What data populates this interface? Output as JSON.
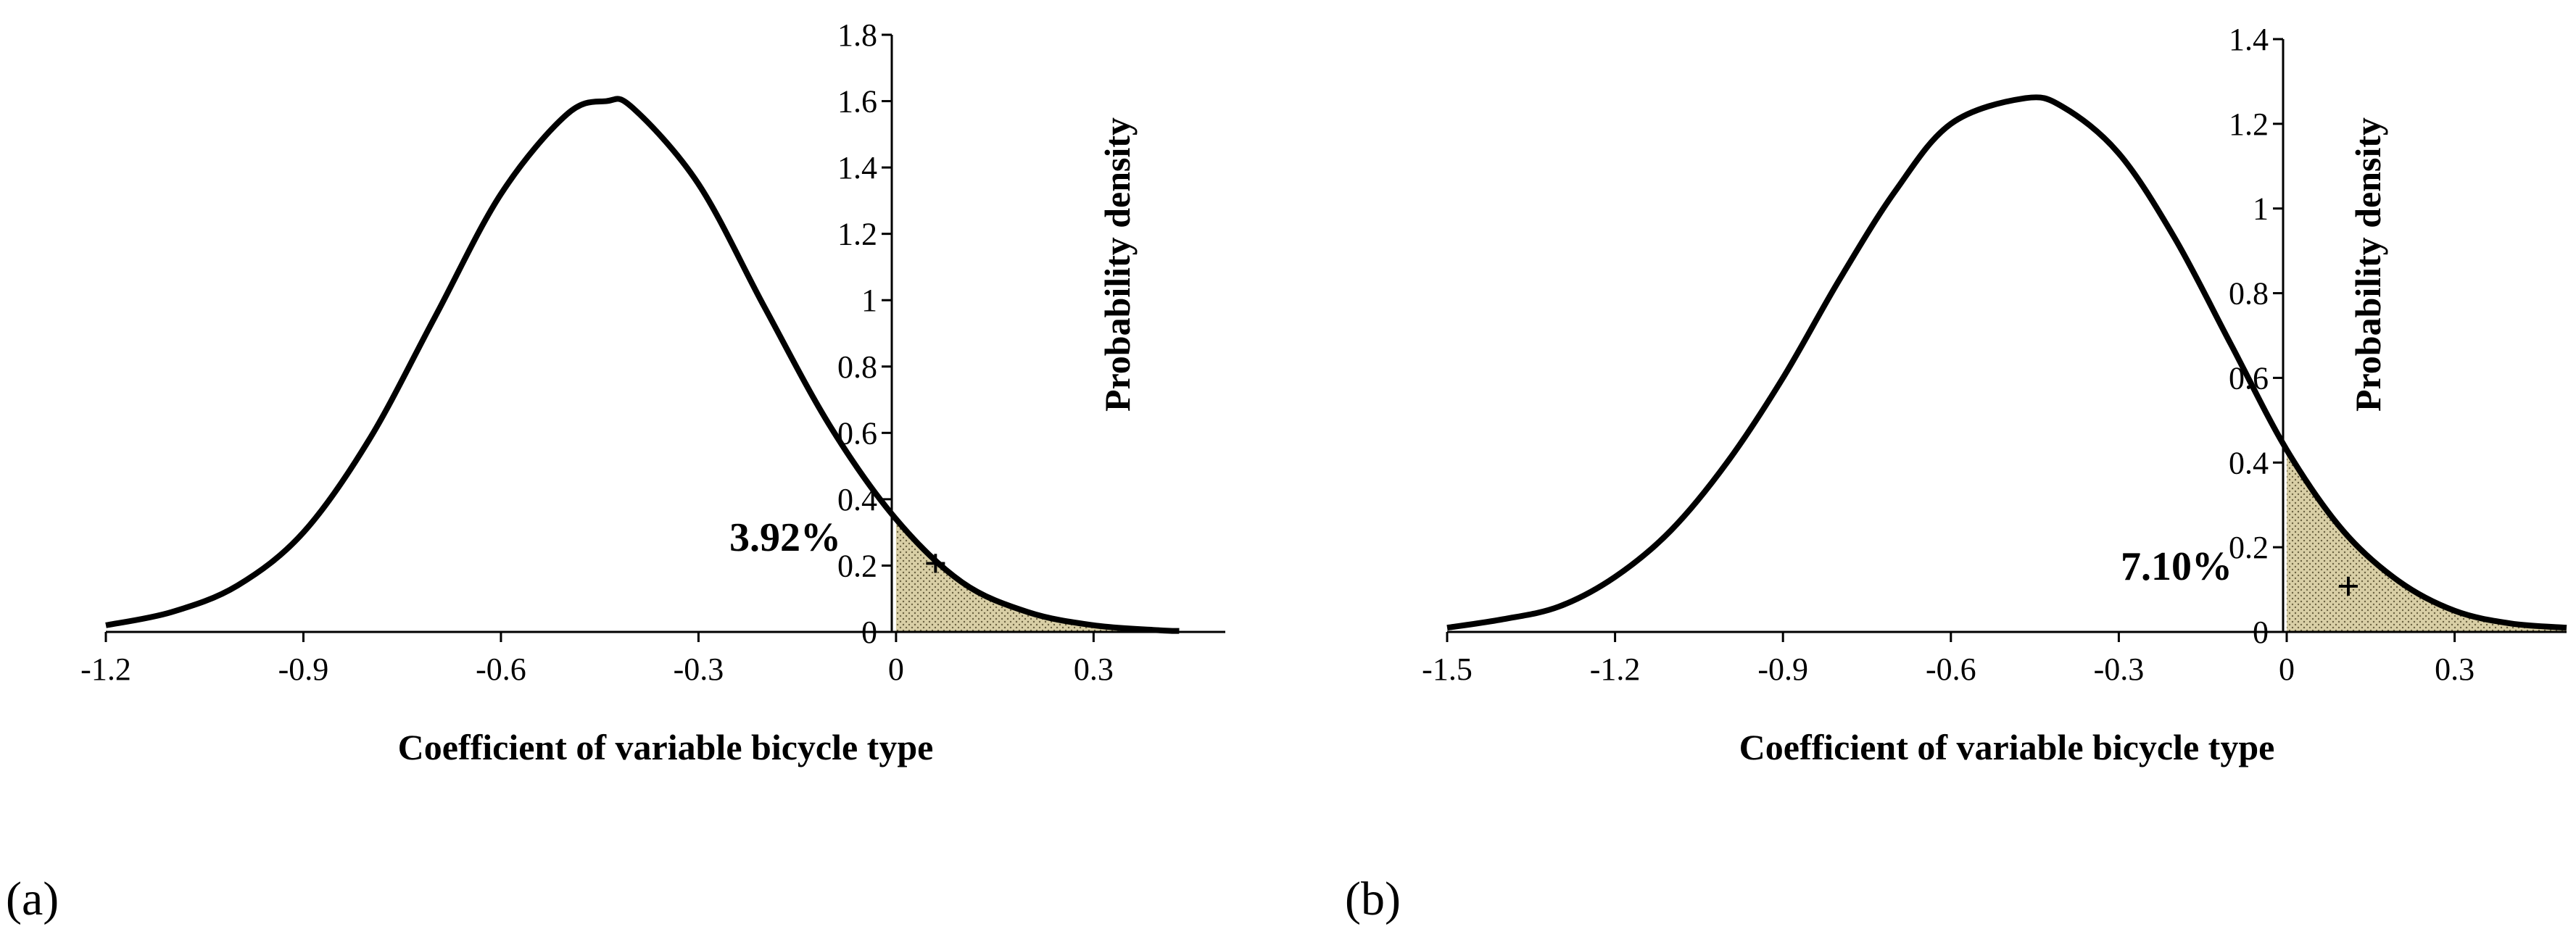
{
  "chart_data": [
    {
      "type": "line",
      "panel_label": "(a)",
      "title": "",
      "xlabel": "Coefficient of variable bicycle type",
      "ylabel": "Probability density",
      "x_ticks": [
        "-1.2",
        "-0.9",
        "-0.6",
        "-0.3",
        "0",
        "0.3"
      ],
      "x_tick_values": [
        -1.2,
        -0.9,
        -0.6,
        -0.3,
        0,
        0.3
      ],
      "y_ticks": [
        "0",
        "0.2",
        "0.4",
        "0.6",
        "0.8",
        "1",
        "1.2",
        "1.4",
        "1.6",
        "1.8"
      ],
      "y_tick_values": [
        0,
        0.2,
        0.4,
        0.6,
        0.8,
        1,
        1.2,
        1.4,
        1.6,
        1.8
      ],
      "xlim": [
        -1.2,
        0.5
      ],
      "ylim": [
        0,
        1.8
      ],
      "series": [
        {
          "name": "Probability density",
          "x": [
            -1.2,
            -1.1,
            -1.0,
            -0.9,
            -0.8,
            -0.7,
            -0.6,
            -0.5,
            -0.44,
            -0.4,
            -0.3,
            -0.2,
            -0.1,
            0,
            0.1,
            0.2,
            0.3,
            0.4,
            0.43
          ],
          "y": [
            0.02,
            0.06,
            0.14,
            0.3,
            0.58,
            0.95,
            1.32,
            1.56,
            1.6,
            1.58,
            1.35,
            0.98,
            0.62,
            0.34,
            0.15,
            0.06,
            0.02,
            0.005,
            0.003
          ]
        }
      ],
      "shaded_region": {
        "from_x": 0,
        "to_x": 0.43,
        "label": "3.92%",
        "marker": "+",
        "marker_x": 0.06,
        "marker_y": 0.21
      }
    },
    {
      "type": "line",
      "panel_label": "(b)",
      "title": "",
      "xlabel": "Coefficient of variable bicycle type",
      "ylabel": "Probability density",
      "x_ticks": [
        "-1.5",
        "-1.2",
        "-0.9",
        "-0.6",
        "-0.3",
        "0",
        "0.3"
      ],
      "x_tick_values": [
        -1.5,
        -1.2,
        -0.9,
        -0.6,
        -0.3,
        0,
        0.3
      ],
      "y_ticks": [
        "0",
        "0.2",
        "0.4",
        "0.6",
        "0.8",
        "1",
        "1.2",
        "1.4"
      ],
      "y_tick_values": [
        0,
        0.2,
        0.4,
        0.6,
        0.8,
        1,
        1.2,
        1.4
      ],
      "xlim": [
        -1.5,
        0.5
      ],
      "ylim": [
        0,
        1.4
      ],
      "series": [
        {
          "name": "Probability density",
          "x": [
            -1.5,
            -1.4,
            -1.3,
            -1.2,
            -1.1,
            -1.0,
            -0.9,
            -0.8,
            -0.7,
            -0.6,
            -0.47,
            -0.4,
            -0.3,
            -0.2,
            -0.1,
            0,
            0.1,
            0.2,
            0.3,
            0.4,
            0.5
          ],
          "y": [
            0.01,
            0.03,
            0.06,
            0.13,
            0.24,
            0.4,
            0.6,
            0.83,
            1.04,
            1.2,
            1.26,
            1.24,
            1.13,
            0.93,
            0.68,
            0.43,
            0.24,
            0.12,
            0.05,
            0.02,
            0.01
          ]
        }
      ],
      "shaded_region": {
        "from_x": 0,
        "to_x": 0.5,
        "label": "7.10%",
        "marker": "+",
        "marker_x": 0.11,
        "marker_y": 0.11
      }
    }
  ],
  "colors": {
    "curve": "#000000",
    "shade_fill": "#d9cfa6",
    "shade_dots": "#6b6242"
  }
}
